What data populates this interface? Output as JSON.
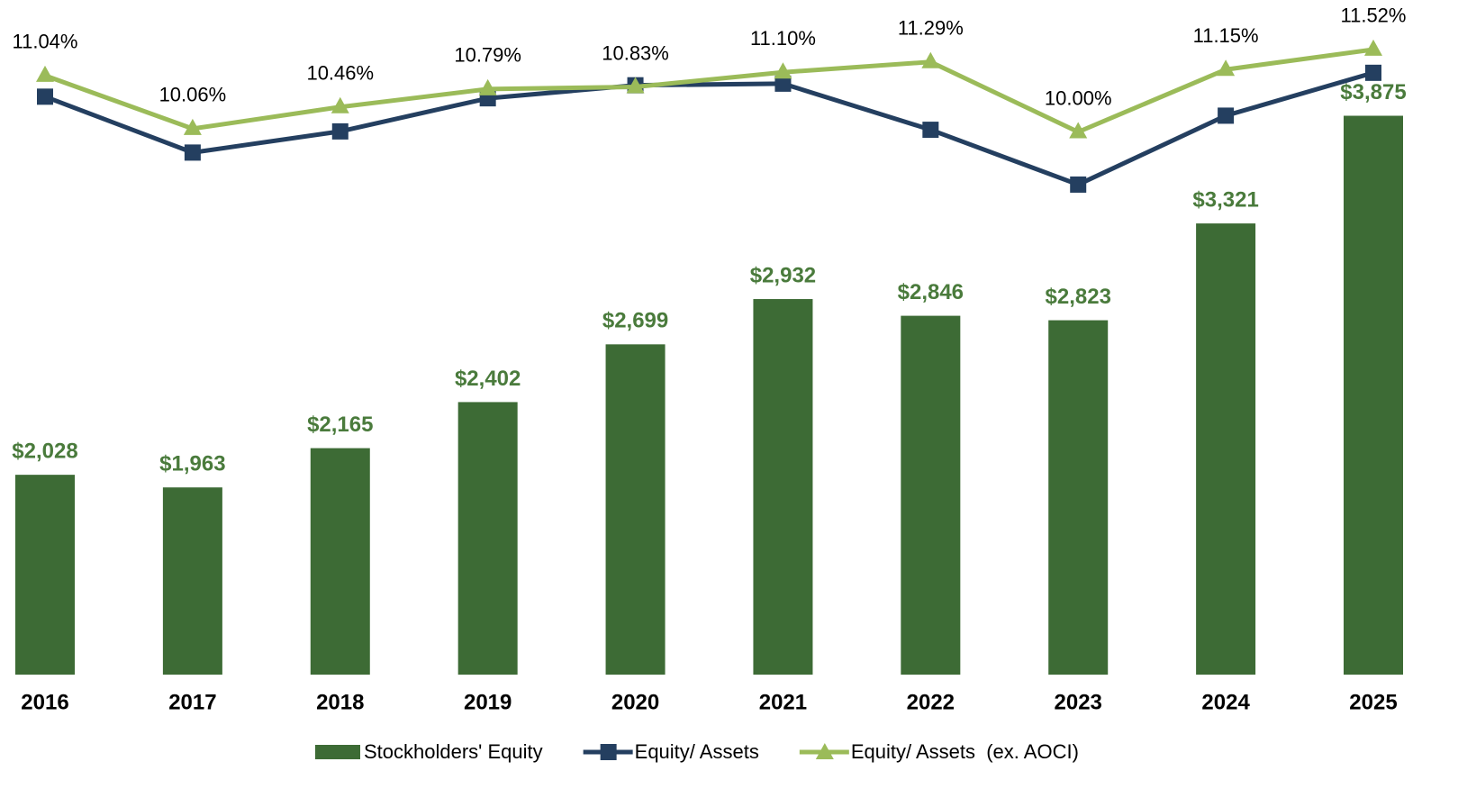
{
  "chart_data": {
    "type": "bar",
    "categories": [
      "2016",
      "2017",
      "2018",
      "2019",
      "2020",
      "2021",
      "2022",
      "2023",
      "2024",
      "2025"
    ],
    "ylim": [
      1000,
      4350
    ],
    "y2lim": [
      0,
      12
    ],
    "series": [
      {
        "name": "Stockholders' Equity",
        "type": "bar",
        "color": "#3d6b35",
        "values": [
          2028,
          1963,
          2165,
          2402,
          2699,
          2932,
          2846,
          2823,
          3321,
          3875
        ],
        "value_labels": [
          "$2,028",
          "$1,963",
          "$2,165",
          "$2,402",
          "$2,699",
          "$2,932",
          "$2,846",
          "$2,823",
          "$3,321",
          "$3,875"
        ]
      },
      {
        "name": "Equity/ Assets",
        "type": "line",
        "marker": "square",
        "axis": "y2",
        "color": "#243f60",
        "values": [
          10.65,
          9.62,
          10.01,
          10.62,
          10.86,
          10.89,
          10.04,
          9.03,
          10.3,
          11.09
        ]
      },
      {
        "name": "Equity/ Assets  (ex. AOCI)",
        "type": "line",
        "marker": "triangle",
        "axis": "y2",
        "color": "#9bbb59",
        "values": [
          11.04,
          10.06,
          10.46,
          10.79,
          10.83,
          11.1,
          11.29,
          10.0,
          11.15,
          11.52
        ],
        "value_labels": [
          "11.04%",
          "10.06%",
          "10.46%",
          "10.79%",
          "10.83%",
          "11.10%",
          "11.29%",
          "10.00%",
          "11.15%",
          "11.52%"
        ]
      }
    ]
  }
}
